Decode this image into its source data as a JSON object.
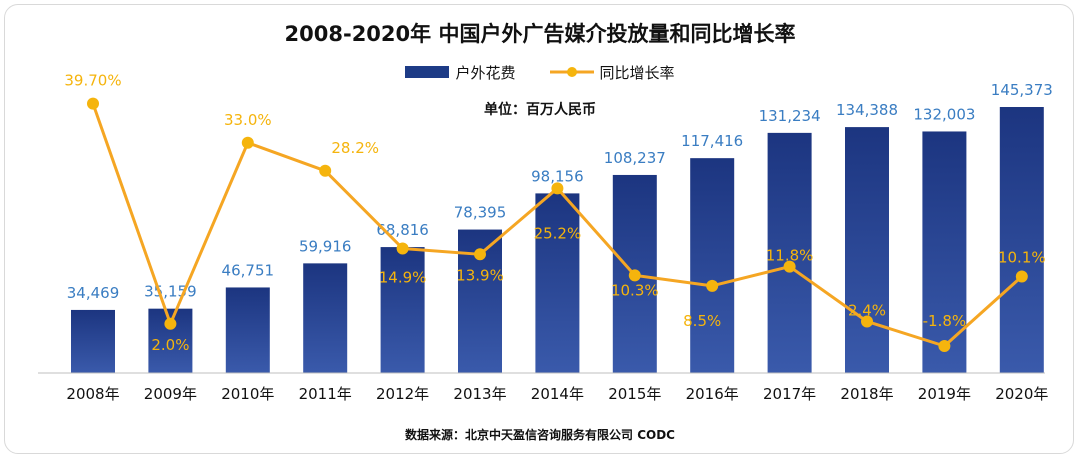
{
  "title": "2008-2020年 中国户外广告媒介投放量和同比增长率",
  "unit_note": "单位：百万人民币",
  "source_note": "数据来源：北京中天盈信咨询服务有限公司 CODC",
  "legend": {
    "bar_label": "户外花费",
    "line_label": "同比增长率"
  },
  "colors": {
    "bar_top": "#1c3580",
    "bar_bottom": "#3a5aab",
    "line": "#f5a623",
    "value_label": "#3a7dc2",
    "pct_label": "#f5b40d"
  },
  "chart_data": {
    "type": "bar",
    "categories": [
      "2008年",
      "2009年",
      "2010年",
      "2011年",
      "2012年",
      "2013年",
      "2014年",
      "2015年",
      "2016年",
      "2017年",
      "2018年",
      "2019年",
      "2020年"
    ],
    "series": [
      {
        "name": "户外花费",
        "type": "bar",
        "values": [
          34469,
          35159,
          46751,
          59916,
          68816,
          78395,
          98156,
          108237,
          117416,
          131234,
          134388,
          132003,
          145373
        ],
        "labels": [
          "34,469",
          "35,159",
          "46,751",
          "59,916",
          "68,816",
          "78,395",
          "98,156",
          "108,237",
          "117,416",
          "131,234",
          "134,388",
          "132,003",
          "145,373"
        ]
      },
      {
        "name": "同比增长率",
        "type": "line",
        "values": [
          39.7,
          2.0,
          33.0,
          28.2,
          14.9,
          13.9,
          25.2,
          10.3,
          8.5,
          11.8,
          2.4,
          -1.8,
          10.1
        ],
        "labels": [
          "39.70%",
          "2.0%",
          "33.0%",
          "28.2%",
          "14.9%",
          "13.9%",
          "25.2%",
          "10.3%",
          "8.5%",
          "11.8%",
          "2.4%",
          "-1.8%",
          "10.1%"
        ]
      }
    ],
    "grid": false,
    "legend_position": "top-center"
  }
}
